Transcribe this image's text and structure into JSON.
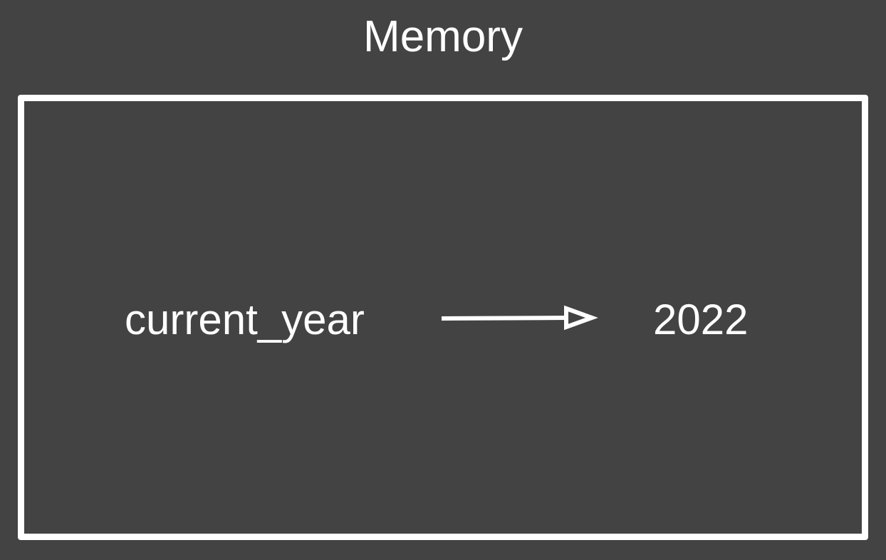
{
  "diagram": {
    "title": "Memory",
    "variable": {
      "name": "current_year",
      "value": "2022"
    }
  },
  "colors": {
    "background": "#434343",
    "foreground": "#ffffff"
  }
}
